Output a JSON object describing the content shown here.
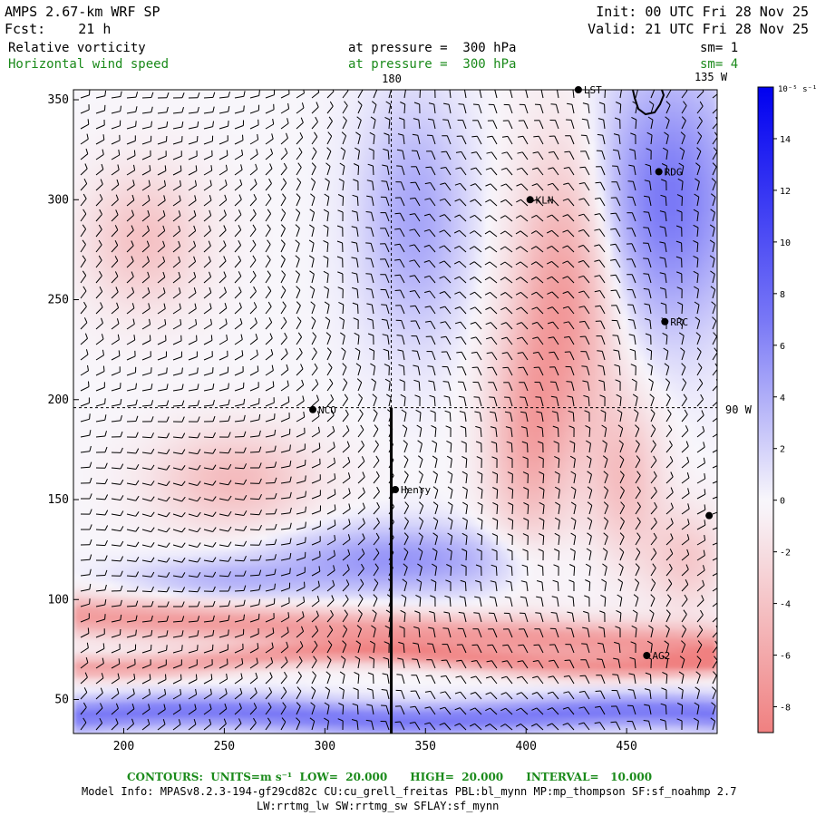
{
  "header": {
    "model_title": "AMPS 2.67-km WRF SP",
    "forecast": "Fcst:    21 h",
    "init": "Init: 00 UTC Fri 28 Nov 25",
    "valid": "Valid: 21 UTC Fri 28 Nov 25",
    "field1_name": "Relative vorticity",
    "field1_level": "at pressure =  300 hPa",
    "field1_sm": "sm= 1",
    "field2_name": "Horizontal wind speed",
    "field2_level": "at pressure =  300 hPa",
    "field2_sm": "sm= 4"
  },
  "map_labels": {
    "lon_180": "180",
    "lon_135w": "135 W",
    "lon_90w": "90 W"
  },
  "stations": [
    {
      "name": "LST",
      "x": 426,
      "y": 355
    },
    {
      "name": "RDG",
      "x": 466,
      "y": 314
    },
    {
      "name": "KLN",
      "x": 402,
      "y": 300
    },
    {
      "name": "RRC",
      "x": 469,
      "y": 239
    },
    {
      "name": "NCO",
      "x": 294,
      "y": 195
    },
    {
      "name": "Henry",
      "x": 335,
      "y": 155
    },
    {
      "name": "",
      "x": 491,
      "y": 142
    },
    {
      "name": "AG2",
      "x": 460,
      "y": 72
    }
  ],
  "colorbar": {
    "unit_label": "10⁻⁵ s⁻¹",
    "tick_labels": [
      "14",
      "12",
      "10",
      "8",
      "6",
      "4",
      "2",
      "0",
      "-2",
      "-4",
      "-6",
      "-8"
    ],
    "positive_color": "#0000f0",
    "negative_color": "#f08080"
  },
  "footer": {
    "contours_line": "CONTOURS:  UNITS=m s⁻¹  LOW=  20.000      HIGH=  20.000      INTERVAL=   10.000",
    "model_info": "Model Info: MPASv8.2.3-194-gf29cd82c CU:cu_grell_freitas PBL:bl_mynn MP:mp_thompson SF:sf_noahmp 2.7",
    "model_info2": "LW:rrtmg_lw SW:rrtmg_sw SFLAY:sf_mynn"
  },
  "chart_data": {
    "type": "heatmap",
    "title": "Relative vorticity",
    "xlim": [
      175,
      495
    ],
    "ylim": [
      33,
      355
    ],
    "x_ticks": [
      200,
      250,
      300,
      350,
      400,
      450
    ],
    "y_ticks": [
      50,
      100,
      150,
      200,
      250,
      300,
      350
    ],
    "color_range": [
      -9,
      16
    ],
    "reference_lines": {
      "vertical_x": 333,
      "horizontal_y": 196
    },
    "cross_section_line": {
      "x": 333,
      "y_from": 33,
      "y_to": 196
    }
  }
}
